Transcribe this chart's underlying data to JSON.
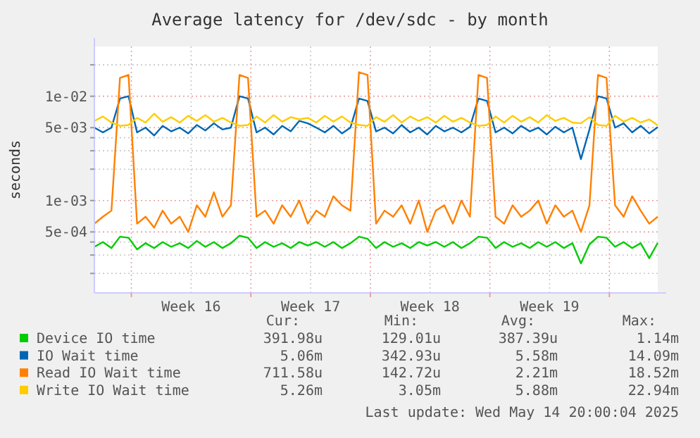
{
  "chart_data": {
    "type": "line",
    "title": "Average latency for /dev/sdc - by month",
    "ylabel": "seconds",
    "log": "y",
    "grid": true,
    "legend": "bottom",
    "xlim": [
      "2025-04-11T20:00",
      "2025-05-14T20:00"
    ],
    "xticks": [
      {
        "value": "2025-04-14T00:00",
        "label": null
      },
      {
        "value": "2025-04-17T12:00",
        "label": "Week 16"
      },
      {
        "value": "2025-04-21T00:00",
        "label": null
      },
      {
        "value": "2025-04-24T12:00",
        "label": "Week 17"
      },
      {
        "value": "2025-04-28T00:00",
        "label": null
      },
      {
        "value": "2025-05-01T12:00",
        "label": "Week 18"
      },
      {
        "value": "2025-05-05T00:00",
        "label": null
      },
      {
        "value": "2025-05-08T12:00",
        "label": "Week 19"
      },
      {
        "value": "2025-05-12T00:00",
        "label": null
      }
    ],
    "ylim": [
      0.00013,
      0.03
    ],
    "yticks": [
      {
        "value": 0.0002,
        "label": null
      },
      {
        "value": 0.0003,
        "label": null
      },
      {
        "value": 0.0004,
        "label": null
      },
      {
        "value": 0.0005,
        "label": "5e-04"
      },
      {
        "value": 0.001,
        "label": "1e-03"
      },
      {
        "value": 0.002,
        "label": null
      },
      {
        "value": 0.003,
        "label": null
      },
      {
        "value": 0.004,
        "label": null
      },
      {
        "value": 0.005,
        "label": "5e-03"
      },
      {
        "value": 0.01,
        "label": "1e-02"
      },
      {
        "value": 0.02,
        "label": null
      }
    ],
    "x": [
      "2025-04-11T20:00",
      "2025-04-12T08:00",
      "2025-04-12T20:00",
      "2025-04-13T08:00",
      "2025-04-13T20:00",
      "2025-04-14T08:00",
      "2025-04-14T20:00",
      "2025-04-15T08:00",
      "2025-04-15T20:00",
      "2025-04-16T08:00",
      "2025-04-16T20:00",
      "2025-04-17T08:00",
      "2025-04-17T20:00",
      "2025-04-18T08:00",
      "2025-04-18T20:00",
      "2025-04-19T08:00",
      "2025-04-19T20:00",
      "2025-04-20T08:00",
      "2025-04-20T20:00",
      "2025-04-21T08:00",
      "2025-04-21T20:00",
      "2025-04-22T08:00",
      "2025-04-22T20:00",
      "2025-04-23T08:00",
      "2025-04-23T20:00",
      "2025-04-24T08:00",
      "2025-04-24T20:00",
      "2025-04-25T08:00",
      "2025-04-25T20:00",
      "2025-04-26T08:00",
      "2025-04-26T20:00",
      "2025-04-27T08:00",
      "2025-04-27T20:00",
      "2025-04-28T08:00",
      "2025-04-28T20:00",
      "2025-04-29T08:00",
      "2025-04-29T20:00",
      "2025-04-30T08:00",
      "2025-04-30T20:00",
      "2025-05-01T08:00",
      "2025-05-01T20:00",
      "2025-05-02T08:00",
      "2025-05-02T20:00",
      "2025-05-03T08:00",
      "2025-05-03T20:00",
      "2025-05-04T08:00",
      "2025-05-04T20:00",
      "2025-05-05T08:00",
      "2025-05-05T20:00",
      "2025-05-06T08:00",
      "2025-05-06T20:00",
      "2025-05-07T08:00",
      "2025-05-07T20:00",
      "2025-05-08T08:00",
      "2025-05-08T20:00",
      "2025-05-09T08:00",
      "2025-05-09T20:00",
      "2025-05-10T08:00",
      "2025-05-10T20:00",
      "2025-05-11T08:00",
      "2025-05-11T20:00",
      "2025-05-12T08:00",
      "2025-05-12T20:00",
      "2025-05-13T08:00",
      "2025-05-13T20:00",
      "2025-05-14T08:00",
      "2025-05-14T20:00"
    ],
    "series": [
      {
        "name": "Device IO time",
        "color": "#00cc00",
        "values": [
          0.00036,
          0.0004,
          0.00035,
          0.00045,
          0.00044,
          0.00034,
          0.00039,
          0.00035,
          0.0004,
          0.00036,
          0.00039,
          0.00035,
          0.00041,
          0.00036,
          0.0004,
          0.00035,
          0.00039,
          0.00046,
          0.00044,
          0.00035,
          0.0004,
          0.00036,
          0.00039,
          0.00035,
          0.0004,
          0.00037,
          0.0004,
          0.00036,
          0.0004,
          0.00035,
          0.00039,
          0.00045,
          0.00043,
          0.00035,
          0.0004,
          0.00036,
          0.00039,
          0.00035,
          0.0004,
          0.00037,
          0.0004,
          0.00036,
          0.0004,
          0.00035,
          0.00039,
          0.00045,
          0.00044,
          0.00035,
          0.0004,
          0.00036,
          0.00039,
          0.00035,
          0.0004,
          0.00036,
          0.0004,
          0.00035,
          0.00039,
          0.00025,
          0.00038,
          0.00045,
          0.00044,
          0.00036,
          0.0004,
          0.00035,
          0.00039,
          0.00028,
          0.000392
        ]
      },
      {
        "name": "IO Wait time",
        "color": "#0066b3",
        "values": [
          0.005,
          0.0045,
          0.005,
          0.0095,
          0.01,
          0.0045,
          0.005,
          0.0042,
          0.0052,
          0.0046,
          0.005,
          0.0044,
          0.0053,
          0.0047,
          0.0055,
          0.0048,
          0.005,
          0.01,
          0.0095,
          0.0045,
          0.005,
          0.0043,
          0.0052,
          0.0046,
          0.0058,
          0.0055,
          0.005,
          0.0045,
          0.0052,
          0.0044,
          0.005,
          0.0095,
          0.009,
          0.0046,
          0.005,
          0.0044,
          0.0053,
          0.0045,
          0.005,
          0.0043,
          0.0052,
          0.0046,
          0.005,
          0.0045,
          0.0051,
          0.0095,
          0.009,
          0.0045,
          0.005,
          0.0044,
          0.0052,
          0.0046,
          0.005,
          0.0043,
          0.0051,
          0.0045,
          0.005,
          0.0025,
          0.0048,
          0.01,
          0.0095,
          0.005,
          0.0055,
          0.0045,
          0.0052,
          0.0044,
          0.00506
        ]
      },
      {
        "name": "Read IO Wait time",
        "color": "#ff8000",
        "values": [
          0.0006,
          0.0007,
          0.0008,
          0.015,
          0.016,
          0.0006,
          0.0007,
          0.00055,
          0.0008,
          0.0006,
          0.0007,
          0.0005,
          0.0009,
          0.0007,
          0.0012,
          0.0007,
          0.0009,
          0.016,
          0.015,
          0.0007,
          0.0008,
          0.0006,
          0.0009,
          0.0007,
          0.001,
          0.0006,
          0.0008,
          0.0007,
          0.0011,
          0.0009,
          0.0008,
          0.017,
          0.016,
          0.0006,
          0.0008,
          0.0007,
          0.0009,
          0.0006,
          0.001,
          0.0005,
          0.0008,
          0.0009,
          0.0006,
          0.001,
          0.0007,
          0.016,
          0.015,
          0.0007,
          0.0006,
          0.0009,
          0.0007,
          0.0008,
          0.001,
          0.0006,
          0.0009,
          0.0007,
          0.0008,
          0.0005,
          0.0009,
          0.016,
          0.015,
          0.0009,
          0.0007,
          0.0011,
          0.0008,
          0.0006,
          0.0007
        ]
      },
      {
        "name": "Write IO Wait time",
        "color": "#ffcc00",
        "values": [
          0.0058,
          0.0064,
          0.0056,
          0.0052,
          0.0053,
          0.0062,
          0.0056,
          0.0068,
          0.0057,
          0.0063,
          0.0056,
          0.0065,
          0.0058,
          0.0066,
          0.0057,
          0.0062,
          0.0056,
          0.0052,
          0.0053,
          0.0064,
          0.0056,
          0.0066,
          0.0057,
          0.0063,
          0.006,
          0.0062,
          0.0056,
          0.0065,
          0.0057,
          0.0064,
          0.0056,
          0.0053,
          0.0052,
          0.0063,
          0.0057,
          0.0066,
          0.0056,
          0.0064,
          0.0058,
          0.0063,
          0.0056,
          0.0065,
          0.0057,
          0.0062,
          0.0056,
          0.0052,
          0.0053,
          0.0064,
          0.0056,
          0.0065,
          0.0057,
          0.0063,
          0.0056,
          0.0066,
          0.0058,
          0.0062,
          0.0056,
          0.0055,
          0.0063,
          0.0053,
          0.0052,
          0.0065,
          0.0057,
          0.0062,
          0.0056,
          0.006,
          0.00526
        ]
      }
    ],
    "annotations": [
      "Cur:",
      "Min:",
      "Avg:",
      "Max:",
      "391.98u",
      "129.01u",
      "387.39u",
      "1.14m",
      "5.06m",
      "342.93u",
      "5.58m",
      "14.09m",
      "711.58u",
      "142.72u",
      "2.21m",
      "18.52m",
      "5.26m",
      "3.05m",
      "5.88m",
      "22.94m",
      "Last update: Wed May 14 20:00:04 2025"
    ]
  }
}
